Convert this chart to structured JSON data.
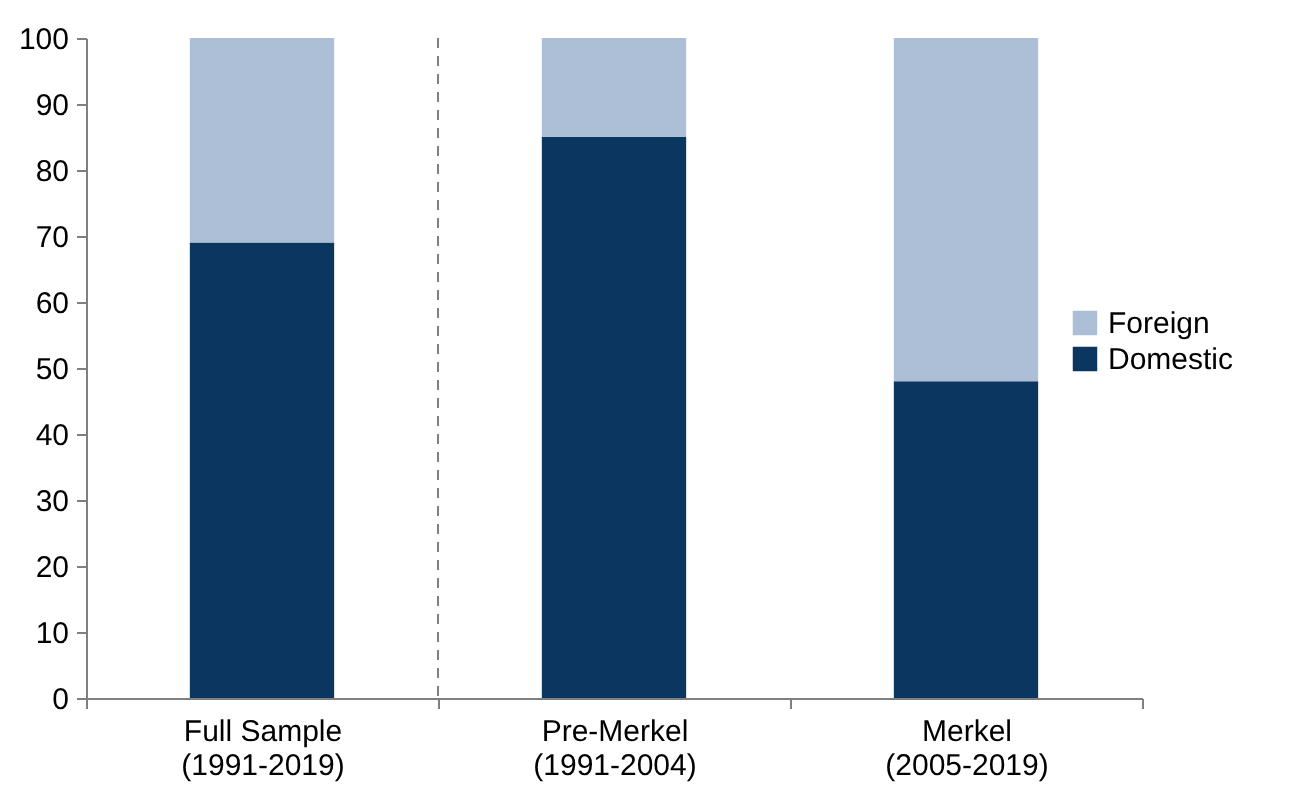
{
  "chart_data": {
    "type": "bar",
    "stacked": true,
    "categories": [
      "Full Sample (1991-2019)",
      "Pre-Merkel (1991-2004)",
      "Merkel (2005-2019)"
    ],
    "series": [
      {
        "name": "Domestic",
        "color": "#0b3660",
        "values": [
          69,
          85,
          48
        ]
      },
      {
        "name": "Foreign",
        "color": "#adbfd6",
        "values": [
          31,
          15,
          52
        ]
      }
    ],
    "ylim": [
      0,
      100
    ],
    "yticks": [
      0,
      10,
      20,
      30,
      40,
      50,
      60,
      70,
      80,
      90,
      100
    ],
    "grid": false,
    "legend": "right"
  }
}
